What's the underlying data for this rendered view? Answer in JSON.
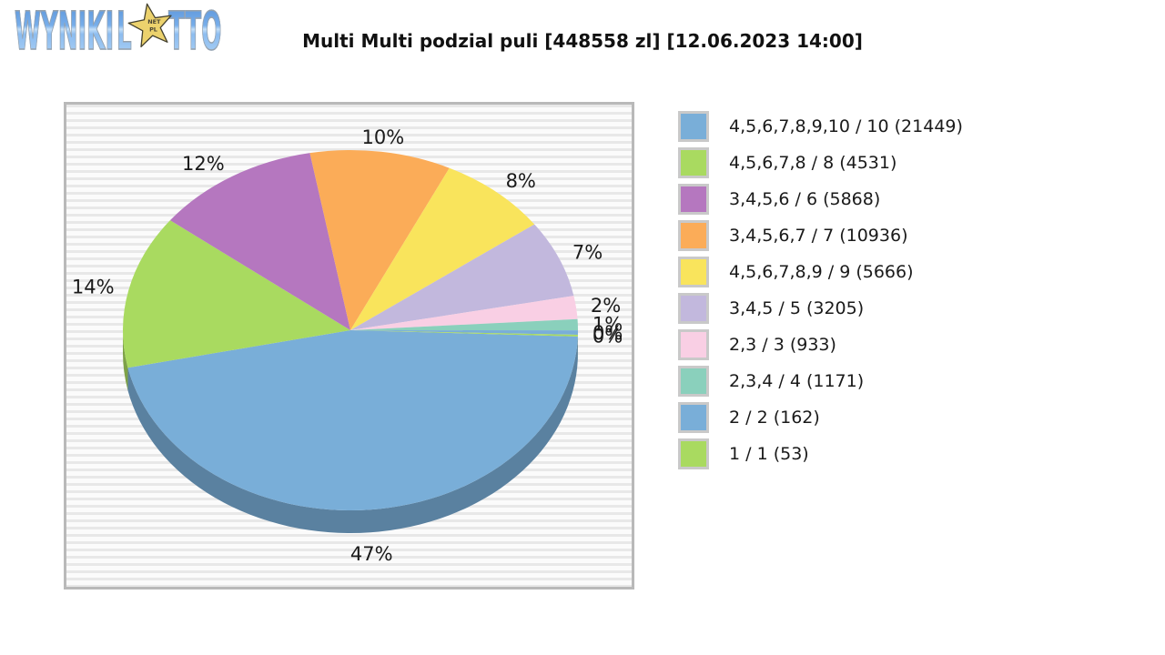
{
  "logo": {
    "word1": "WYNIKI",
    "word2_l": "L",
    "word2_rest": "TTO",
    "star_line1": "NET",
    "star_line2": "PL",
    "star_color": "#ecd26d"
  },
  "chart_data": {
    "type": "pie",
    "effect": "3d",
    "title": "Multi Multi podzial puli [448558 zl] [12.06.2023 14:00]",
    "pool": "448558 zl",
    "draw_time": "12.06.2023 14:00",
    "legend_position": "right",
    "slices": [
      {
        "tier": "4,5,6,7,8,9,10 / 10",
        "winners": 21449,
        "percent_label": "47%",
        "share_pct": 46.5,
        "color": "#79aed8"
      },
      {
        "tier": "4,5,6,7,8 / 8",
        "winners": 4531,
        "percent_label": "14%",
        "share_pct": 13.9,
        "color": "#a9da60"
      },
      {
        "tier": "3,4,5,6 / 6",
        "winners": 5868,
        "percent_label": "12%",
        "share_pct": 11.8,
        "color": "#b577bf"
      },
      {
        "tier": "3,4,5,6,7 / 7",
        "winners": 10936,
        "percent_label": "10%",
        "share_pct": 10.1,
        "color": "#fbac58"
      },
      {
        "tier": "4,5,6,7,8,9 / 9",
        "winners": 5666,
        "percent_label": "8%",
        "share_pct": 7.9,
        "color": "#f9e45c"
      },
      {
        "tier": "3,4,5 / 5",
        "winners": 3205,
        "percent_label": "7%",
        "share_pct": 7.0,
        "color": "#c2b8dd"
      },
      {
        "tier": "2,3 / 3",
        "winners": 933,
        "percent_label": "2%",
        "share_pct": 2.1,
        "color": "#f9cfe4"
      },
      {
        "tier": "2,3,4 / 4",
        "winners": 1171,
        "percent_label": "1%",
        "share_pct": 1.0,
        "color": "#8ad0bc"
      },
      {
        "tier": "2 / 2",
        "winners": 162,
        "percent_label": "0%",
        "share_pct": 0.4,
        "color": "#79aed8"
      },
      {
        "tier": "1 / 1",
        "winners": 53,
        "percent_label": "0%",
        "share_pct": 0.15,
        "color": "#a9da60"
      }
    ]
  }
}
